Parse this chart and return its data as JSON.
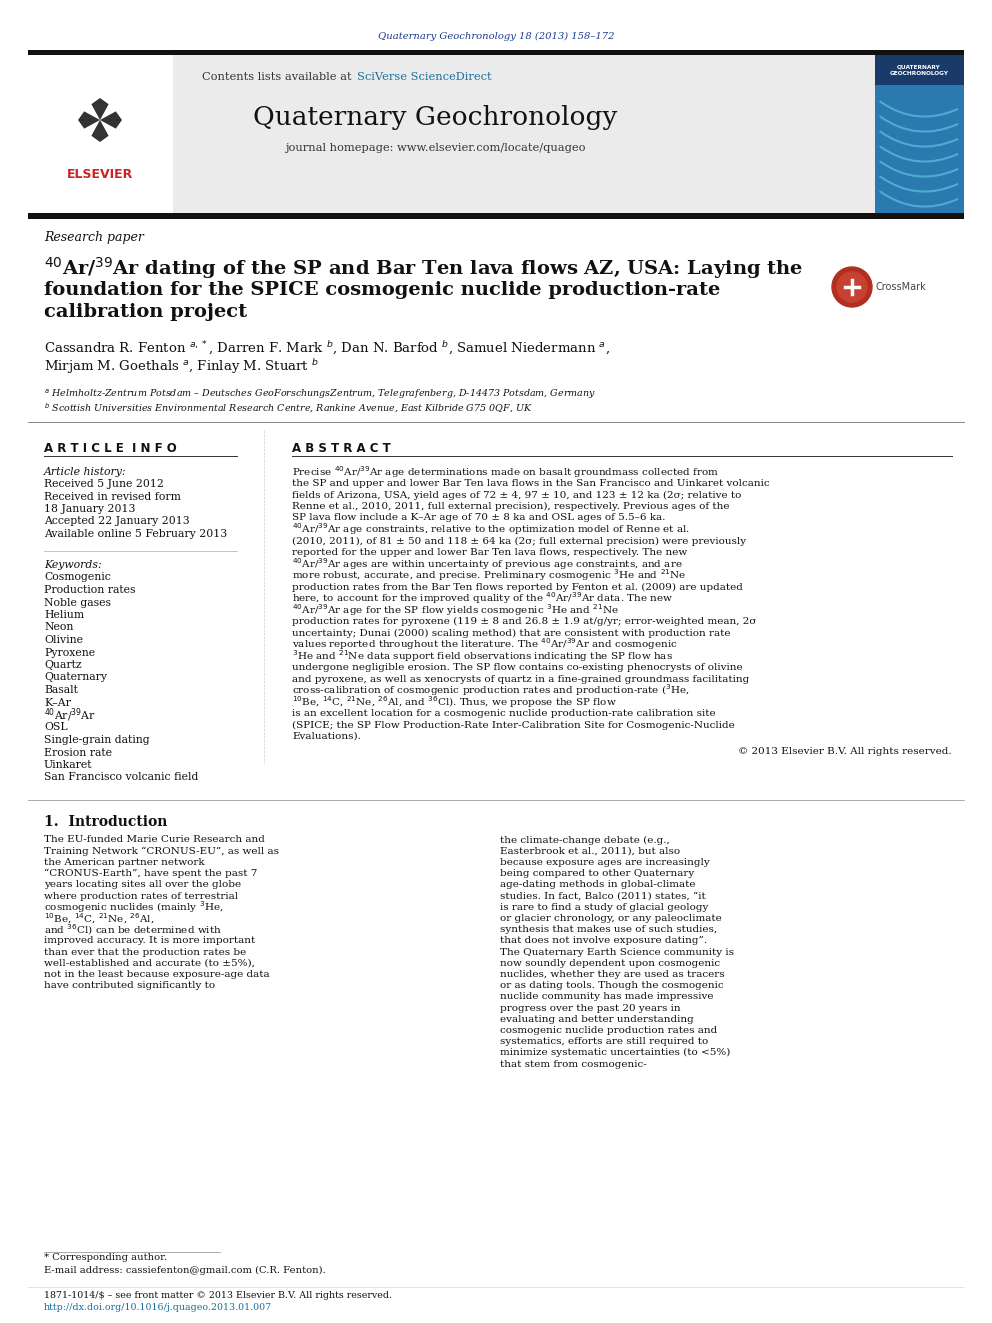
{
  "journal_ref": "Quaternary Geochronology 18 (2013) 158–172",
  "journal_ref_color": "#1a3a8c",
  "contents_text": "Contents lists available at ",
  "sciverse_text": "SciVerse ScienceDirect",
  "sciverse_color": "#1a6fa0",
  "journal_title": "Quaternary Geochronology",
  "homepage_text": "journal homepage: www.elsevier.com/locate/quageo",
  "section_label": "Research paper",
  "paper_title_line1": "$^{40}$Ar/$^{39}$Ar dating of the SP and Bar Ten lava flows AZ, USA: Laying the",
  "paper_title_line2": "foundation for the SPICE cosmogenic nuclide production-rate",
  "paper_title_line3": "calibration project",
  "authors": "Cassandra R. Fenton $^{a,*}$, Darren F. Mark $^{b}$, Dan N. Barfod $^{b}$, Samuel Niedermann $^{a}$,",
  "authors2": "Mirjam M. Goethals $^{a}$, Finlay M. Stuart $^{b}$",
  "affil_a": "$^{a}$ Helmholtz-Zentrum Potsdam – Deutsches GeoForschungsZentrum, Telegrafenberg, D-14473 Potsdam, Germany",
  "affil_b": "$^{b}$ Scottish Universities Environmental Research Centre, Rankine Avenue, East Kilbride G75 0QF, UK",
  "article_info_header": "A R T I C L E  I N F O",
  "abstract_header": "A B S T R A C T",
  "article_history_label": "Article history:",
  "history_lines": [
    "Received 5 June 2012",
    "Received in revised form",
    "18 January 2013",
    "Accepted 22 January 2013",
    "Available online 5 February 2013"
  ],
  "keywords_label": "Keywords:",
  "keywords": [
    "Cosmogenic",
    "Production rates",
    "Noble gases",
    "Helium",
    "Neon",
    "Olivine",
    "Pyroxene",
    "Quartz",
    "Quaternary",
    "Basalt",
    "K–Ar",
    "$^{40}$Ar/$^{39}$Ar",
    "OSL",
    "Single-grain dating",
    "Erosion rate",
    "Uinkaret",
    "San Francisco volcanic field"
  ],
  "abstract_text": "Precise $^{40}$Ar/$^{39}$Ar age determinations made on basalt groundmass collected from the SP and upper and lower Bar Ten lava flows in the San Francisco and Uinkaret volcanic fields of Arizona, USA, yield ages of 72 ± 4, 97 ± 10, and 123 ± 12 ka (2σ; relative to Renne et al., 2010, 2011, full external precision), respectively. Previous ages of the SP lava flow include a K–Ar age of 70 ± 8 ka and OSL ages of 5.5–6 ka. $^{40}$Ar/$^{39}$Ar age constraints, relative to the optimization model of Renne et al. (2010, 2011), of 81 ± 50 and 118 ± 64 ka (2σ; full external precision) were previously reported for the upper and lower Bar Ten lava flows, respectively. The new $^{40}$Ar/$^{39}$Ar ages are within uncertainty of previous age constraints, and are more robust, accurate, and precise. Preliminary cosmogenic $^{3}$He and $^{21}$Ne production rates from the Bar Ten flows reported by Fenton et al. (2009) are updated here, to account for the improved quality of the $^{40}$Ar/$^{39}$Ar data. The new $^{40}$Ar/$^{39}$Ar age for the SP flow yields cosmogenic $^{3}$He and $^{21}$Ne production rates for pyroxene (119 ± 8 and 26.8 ± 1.9 at/g/yr; error-weighted mean, 2σ uncertainty; Dunai (2000) scaling method) that are consistent with production rate values reported throughout the literature. The $^{40}$Ar/$^{39}$Ar and cosmogenic $^{3}$He and $^{21}$Ne data support field observations indicating the SP flow has undergone negligible erosion. The SP flow contains co-existing phenocrysts of olivine and pyroxene, as well as xenocrysts of quartz in a fine-grained groundmass facilitating cross-calibration of cosmogenic production rates and production-rate ($^{3}$He, $^{10}$Be, $^{14}$C, $^{21}$Ne, $^{26}$Al, and $^{36}$Cl). Thus, we propose the SP flow is an excellent location for a cosmogenic nuclide production-rate calibration site (SPICE; the SP Flow Production-Rate Inter-Calibration Site for Cosmogenic-Nuclide Evaluations).",
  "copyright": "© 2013 Elsevier B.V. All rights reserved.",
  "intro_header": "1.  Introduction",
  "intro_col1": "The EU-funded Marie Curie Research and Training Network “CRONUS-EU”, as well as the American partner network “CRONUS-Earth”, have spent the past 7 years locating sites all over the globe where production rates of terrestrial cosmogenic nuclides (mainly $^{3}$He, $^{10}$Be, $^{14}$C, $^{21}$Ne, $^{26}$Al, and $^{36}$Cl) can be determined with improved accuracy. It is more important than ever that the production rates be well-established and accurate (to ±5%), not in the least because exposure-age data have contributed significantly to",
  "intro_col2": "the climate-change debate (e.g., Easterbrook et al., 2011), but also because exposure ages are increasingly being compared to other Quaternary age-dating methods in global-climate studies. In fact, Balco (2011) states, “it is rare to find a study of glacial geology or glacier chronology, or any paleoclimate synthesis that makes use of such studies, that does not involve exposure dating”. The Quaternary Earth Science community is now soundly dependent upon cosmogenic nuclides, whether they are used as tracers or as dating tools. Though the cosmogenic nuclide community has made impressive progress over the past 20 years in evaluating and better understanding cosmogenic nuclide production rates and systematics, efforts are still required to minimize systematic uncertainties (to <5%) that stem from cosmogenic-",
  "footnote_star": "* Corresponding author.",
  "footnote_email": "E-mail address: cassiefenton@gmail.com (C.R. Fenton).",
  "footer_issn": "1871-1014/$ – see front matter © 2013 Elsevier B.V. All rights reserved.",
  "footer_doi": "http://dx.doi.org/10.1016/j.quageo.2013.01.007",
  "bg_color": "#ffffff",
  "header_bg": "#e8e8e8",
  "black_bar_color": "#111111",
  "text_color": "#000000",
  "link_color": "#1a6fa0"
}
